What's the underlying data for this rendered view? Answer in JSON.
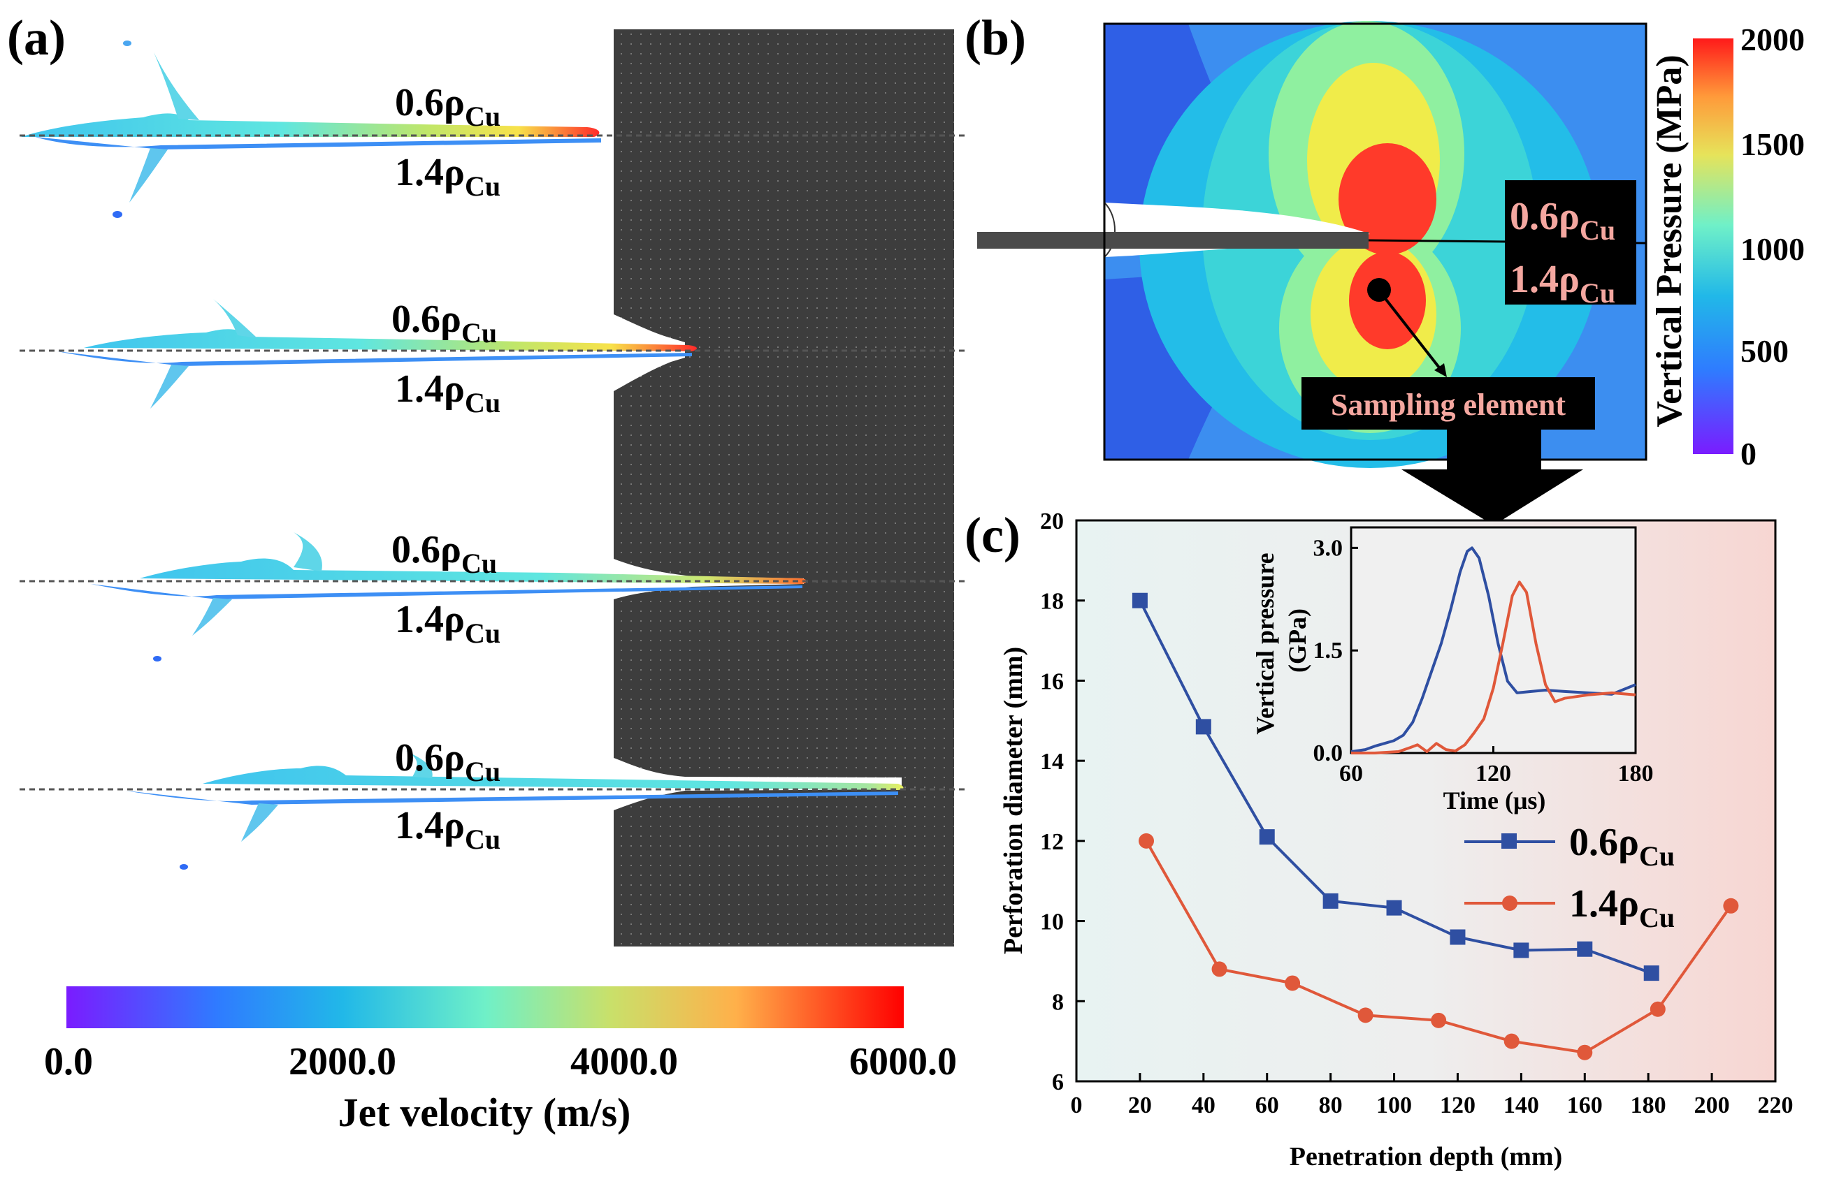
{
  "panel_labels": {
    "a": "(a)",
    "b": "(b)",
    "c": "(c)"
  },
  "density_labels": {
    "upper": "0.6ρ",
    "lower": "1.4ρ",
    "subscript": "Cu"
  },
  "colors": {
    "series_06": "#2f4fa2",
    "series_14": "#e0583a",
    "target_plate": "#3d3d3d",
    "label_box": "#000000",
    "label_text_pink": "#f4a7a0"
  },
  "panel_a": {
    "colorbar": {
      "title": "Jet velocity (m/s)",
      "tick_labels": [
        "0.0",
        "2000.0",
        "4000.0",
        "6000.0"
      ],
      "range": [
        0,
        6000
      ]
    }
  },
  "panel_b": {
    "sampling_label": "Sampling element",
    "colorbar": {
      "title": "Vertical Pressure (MPa)",
      "tick_labels": [
        "2000",
        "1500",
        "1000",
        "500",
        "0"
      ],
      "range": [
        0,
        2000
      ]
    }
  },
  "chart_data": [
    {
      "type": "line",
      "xlabel": "Penetration depth (mm)",
      "ylabel": "Perforation diameter (mm)",
      "xlim": [
        0,
        220
      ],
      "ylim": [
        6,
        20
      ],
      "x_ticks": [
        "0",
        "20",
        "40",
        "60",
        "80",
        "100",
        "120",
        "140",
        "160",
        "180",
        "200",
        "220"
      ],
      "y_ticks": [
        "6",
        "8",
        "10",
        "12",
        "14",
        "16",
        "18",
        "20"
      ],
      "legend_position": "right",
      "series": [
        {
          "name": "0.6ρCu",
          "marker": "square",
          "color": "#2f4fa2",
          "x": [
            20,
            40,
            60,
            80,
            100,
            120,
            140,
            160,
            181
          ],
          "y": [
            18.0,
            14.85,
            12.1,
            10.5,
            10.33,
            9.6,
            9.27,
            9.3,
            8.7
          ]
        },
        {
          "name": "1.4ρCu",
          "marker": "circle",
          "color": "#e0583a",
          "x": [
            22,
            45,
            68,
            91,
            114,
            137,
            160,
            183,
            206
          ],
          "y": [
            12.0,
            8.8,
            8.45,
            7.65,
            7.52,
            7.0,
            6.72,
            7.8,
            10.38
          ]
        }
      ]
    },
    {
      "type": "line",
      "xlabel": "Time (μs)",
      "ylabel": "Vertical pressure (GPa)",
      "xlim": [
        60,
        180
      ],
      "ylim": [
        0,
        3.3
      ],
      "x_ticks": [
        "60",
        "120",
        "180"
      ],
      "y_ticks": [
        "0.0",
        "1.5",
        "3.0"
      ],
      "series": [
        {
          "color": "#2f4fa2",
          "x": [
            60,
            66,
            70,
            74,
            78,
            82,
            86,
            90,
            94,
            98,
            102,
            106,
            109,
            111,
            114,
            118,
            122,
            126,
            130,
            136,
            142,
            150,
            160,
            170,
            180
          ],
          "y": [
            0.02,
            0.05,
            0.1,
            0.14,
            0.18,
            0.26,
            0.45,
            0.8,
            1.2,
            1.6,
            2.1,
            2.65,
            2.95,
            3.0,
            2.85,
            2.3,
            1.6,
            1.05,
            0.88,
            0.9,
            0.92,
            0.9,
            0.88,
            0.86,
            1.0
          ]
        },
        {
          "color": "#e0583a",
          "x": [
            60,
            70,
            80,
            85,
            88,
            92,
            96,
            100,
            104,
            108,
            112,
            116,
            120,
            124,
            128,
            131,
            134,
            138,
            142,
            146,
            150,
            160,
            170,
            180
          ],
          "y": [
            0.0,
            0.0,
            0.02,
            0.08,
            0.12,
            0.02,
            0.14,
            0.05,
            0.03,
            0.12,
            0.3,
            0.5,
            0.95,
            1.6,
            2.3,
            2.5,
            2.35,
            1.6,
            1.0,
            0.75,
            0.8,
            0.85,
            0.88,
            0.85
          ]
        }
      ]
    }
  ]
}
